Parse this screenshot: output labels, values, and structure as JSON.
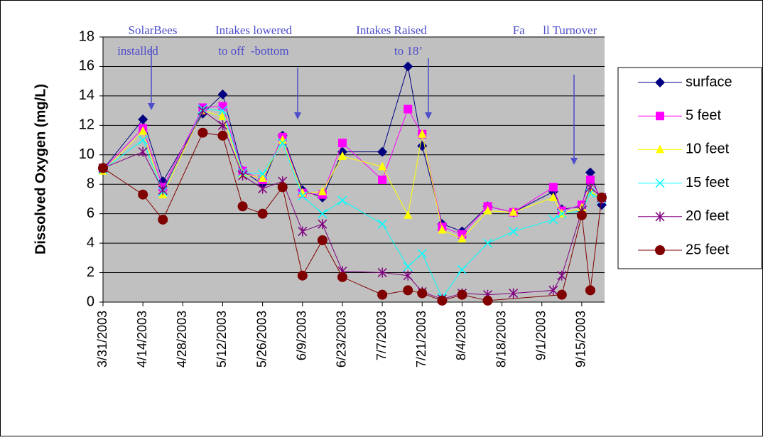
{
  "chart_data": {
    "type": "line",
    "y_label": "Dissolved Oxygen (mg/L)",
    "x": [
      "2003-03-31",
      "2003-04-14",
      "2003-04-21",
      "2003-05-05",
      "2003-05-12",
      "2003-05-19",
      "2003-05-26",
      "2003-06-02",
      "2003-06-09",
      "2003-06-16",
      "2003-06-23",
      "2003-07-07",
      "2003-07-16",
      "2003-07-21",
      "2003-07-28",
      "2003-08-04",
      "2003-08-13",
      "2003-08-22",
      "2003-09-05",
      "2003-09-08",
      "2003-09-15",
      "2003-09-18",
      "2003-09-22"
    ],
    "series": [
      {
        "name": "surface",
        "color": "#000080",
        "marker": "diamond",
        "values": [
          9.0,
          12.4,
          8.2,
          12.8,
          14.1,
          8.9,
          8.0,
          11.3,
          7.6,
          7.1,
          10.2,
          10.2,
          16.0,
          10.6,
          5.3,
          4.8,
          6.5,
          6.1,
          7.5,
          6.3,
          6.5,
          8.8,
          6.6
        ]
      },
      {
        "name": "5 feet",
        "color": "#ff00ff",
        "marker": "square",
        "values": [
          9.0,
          11.8,
          7.8,
          13.2,
          13.3,
          8.9,
          8.3,
          11.2,
          7.4,
          7.3,
          10.8,
          8.3,
          13.1,
          11.4,
          5.1,
          4.6,
          6.5,
          6.1,
          7.8,
          6.2,
          6.6,
          8.3,
          7.0
        ]
      },
      {
        "name": "10 feet",
        "color": "#ffff00",
        "marker": "triangle",
        "values": [
          8.9,
          11.6,
          7.3,
          13.0,
          12.6,
          8.7,
          8.4,
          11.0,
          7.4,
          7.5,
          9.9,
          9.2,
          5.9,
          11.4,
          4.9,
          4.3,
          6.2,
          6.1,
          7.1,
          6.0,
          6.4,
          7.5,
          7.0
        ]
      },
      {
        "name": "15 feet",
        "color": "#00ffff",
        "marker": "x",
        "values": [
          9.0,
          11.0,
          7.5,
          13.1,
          13.0,
          8.8,
          8.7,
          10.8,
          7.2,
          6.0,
          6.9,
          5.3,
          2.4,
          3.3,
          0.3,
          2.2,
          4.0,
          4.8,
          5.6,
          6.0,
          6.2,
          7.4,
          7.0
        ]
      },
      {
        "name": "20 feet",
        "color": "#800080",
        "marker": "star",
        "values": [
          9.1,
          10.2,
          7.6,
          13.0,
          12.0,
          8.6,
          7.7,
          8.2,
          4.8,
          5.3,
          2.1,
          2.0,
          1.8,
          0.7,
          0.2,
          0.6,
          0.5,
          0.6,
          0.8,
          1.8,
          6.2,
          7.8,
          7.1
        ]
      },
      {
        "name": "25 feet",
        "color": "#800000",
        "marker": "circle",
        "x": [
          "2003-03-31",
          "2003-04-14",
          "2003-04-21",
          "2003-05-05",
          "2003-05-12",
          "2003-05-19",
          "2003-05-26",
          "2003-06-02",
          "2003-06-09",
          "2003-06-16",
          "2003-06-23",
          "2003-07-07",
          "2003-07-16",
          "2003-07-21",
          "2003-07-28",
          "2003-08-04",
          "2003-08-13",
          "2003-09-08",
          "2003-09-15",
          "2003-09-18",
          "2003-09-22"
        ],
        "values": [
          9.1,
          7.3,
          5.6,
          11.5,
          11.3,
          6.5,
          6.0,
          7.8,
          1.8,
          4.2,
          1.7,
          0.5,
          0.8,
          0.6,
          0.1,
          0.5,
          0.1,
          0.5,
          5.9,
          0.8,
          7.1
        ]
      }
    ],
    "xlim": [
      "2003-03-31",
      "2003-09-23"
    ],
    "xticks": [
      {
        "value": "2003-03-31",
        "label": "3/31/2003"
      },
      {
        "value": "2003-04-14",
        "label": "4/14/2003"
      },
      {
        "value": "2003-04-28",
        "label": "4/28/2003"
      },
      {
        "value": "2003-05-12",
        "label": "5/12/2003"
      },
      {
        "value": "2003-05-26",
        "label": "5/26/2003"
      },
      {
        "value": "2003-06-09",
        "label": "6/9/2003"
      },
      {
        "value": "2003-06-23",
        "label": "6/23/2003"
      },
      {
        "value": "2003-07-07",
        "label": "7/7/2003"
      },
      {
        "value": "2003-07-21",
        "label": "7/21/2003"
      },
      {
        "value": "2003-08-04",
        "label": "8/4/2003"
      },
      {
        "value": "2003-08-18",
        "label": "8/18/2003"
      },
      {
        "value": "2003-09-01",
        "label": "9/1/2003"
      },
      {
        "value": "2003-09-15",
        "label": "9/15/2003"
      }
    ],
    "ylim": [
      0,
      18
    ],
    "yticks": [
      0,
      2,
      4,
      6,
      8,
      10,
      12,
      14,
      16,
      18
    ],
    "grid": true,
    "legend": "right",
    "annotations": [
      {
        "lines": [
          "SolarBees",
          "installed"
        ]
      },
      {
        "lines": [
          "Intakes lowered",
          "to off  -bottom"
        ]
      },
      {
        "lines": [
          "Intakes Raised",
          "to 18’"
        ]
      },
      {
        "lines": [
          "Fa      ll Turnover"
        ]
      }
    ]
  }
}
